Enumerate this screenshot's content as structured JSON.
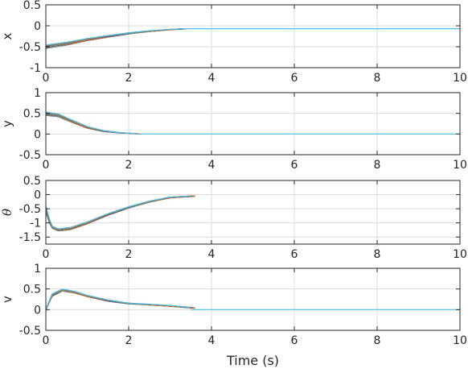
{
  "chart_data": [
    {
      "type": "line",
      "ylabel": "x",
      "ylabel_italic": false,
      "xlim": [
        0,
        10
      ],
      "ylim": [
        -1,
        0.5
      ],
      "xticks": [
        0,
        2,
        4,
        6,
        8,
        10
      ],
      "yticks": [
        -1,
        -0.5,
        0,
        0.5
      ],
      "ytick_labels": [
        "-1",
        "-0.5",
        "0",
        "0.5"
      ],
      "grid": true,
      "series_count": 20,
      "series_envelope": {
        "x": [
          0,
          0.5,
          1,
          1.5,
          2,
          2.5,
          3,
          3.4,
          10
        ],
        "y_center": [
          -0.5,
          -0.43,
          -0.33,
          -0.25,
          -0.18,
          -0.13,
          -0.09,
          -0.07,
          -0.07
        ],
        "y_spread": [
          0.08,
          0.07,
          0.05,
          0.04,
          0.03,
          0.02,
          0.01,
          0.0,
          0.0
        ]
      }
    },
    {
      "type": "line",
      "ylabel": "y",
      "ylabel_italic": false,
      "xlim": [
        0,
        10
      ],
      "ylim": [
        -0.5,
        1
      ],
      "xticks": [
        0,
        2,
        4,
        6,
        8,
        10
      ],
      "yticks": [
        -0.5,
        0,
        0.5,
        1
      ],
      "ytick_labels": [
        "-0.5",
        "0",
        "0.5",
        "1"
      ],
      "grid": true,
      "series_count": 20,
      "series_envelope": {
        "x": [
          0,
          0.3,
          0.6,
          1,
          1.4,
          1.8,
          2.3,
          10
        ],
        "y_center": [
          0.49,
          0.45,
          0.32,
          0.16,
          0.07,
          0.03,
          0.0,
          0.0
        ],
        "y_spread": [
          0.08,
          0.07,
          0.06,
          0.04,
          0.02,
          0.01,
          0.0,
          0.0
        ]
      }
    },
    {
      "type": "line",
      "ylabel": "θ",
      "ylabel_italic": true,
      "xlim": [
        0,
        10
      ],
      "ylim": [
        -1.75,
        0.5
      ],
      "xticks": [
        0,
        2,
        4,
        6,
        8,
        10
      ],
      "yticks": [
        -1.5,
        -1,
        -0.5,
        0,
        0.5
      ],
      "ytick_labels": [
        "-1.5",
        "-1",
        "-0.5",
        "0",
        "0.5"
      ],
      "grid": true,
      "series_count": 20,
      "series_envelope": {
        "x": [
          0,
          0.08,
          0.15,
          0.3,
          0.6,
          1,
          1.5,
          2,
          2.5,
          3,
          3.6
        ],
        "y_center": [
          -0.5,
          -0.9,
          -1.15,
          -1.25,
          -1.2,
          -1.0,
          -0.7,
          -0.45,
          -0.25,
          -0.1,
          -0.05
        ],
        "y_spread": [
          0.25,
          0.15,
          0.08,
          0.08,
          0.08,
          0.07,
          0.06,
          0.05,
          0.04,
          0.03,
          0.02
        ]
      }
    },
    {
      "type": "line",
      "ylabel": "v",
      "ylabel_italic": false,
      "xlabel": "Time (s)",
      "xlim": [
        0,
        10
      ],
      "ylim": [
        -0.5,
        1
      ],
      "xticks": [
        0,
        2,
        4,
        6,
        8,
        10
      ],
      "yticks": [
        -0.5,
        0,
        0.5,
        1
      ],
      "ytick_labels": [
        "-0.5",
        "0",
        "0.5",
        "1"
      ],
      "grid": true,
      "series_count": 20,
      "series_envelope": {
        "x": [
          0,
          0.15,
          0.4,
          0.7,
          1,
          1.5,
          2,
          2.5,
          3,
          3.6,
          10
        ],
        "y_center": [
          0.0,
          0.35,
          0.47,
          0.42,
          0.33,
          0.22,
          0.15,
          0.12,
          0.09,
          0.04,
          0.0
        ],
        "y_spread": [
          0.02,
          0.06,
          0.05,
          0.04,
          0.03,
          0.03,
          0.02,
          0.02,
          0.02,
          0.01,
          0.0
        ]
      }
    }
  ],
  "colors": {
    "palette": [
      "#0072BD",
      "#D95319",
      "#EDB120",
      "#7E2F8E",
      "#77AC30",
      "#4DBEEE",
      "#A2142F"
    ],
    "steady_line": "#4DBEEE",
    "axis": "#262626",
    "grid": "#dcdcdc"
  }
}
